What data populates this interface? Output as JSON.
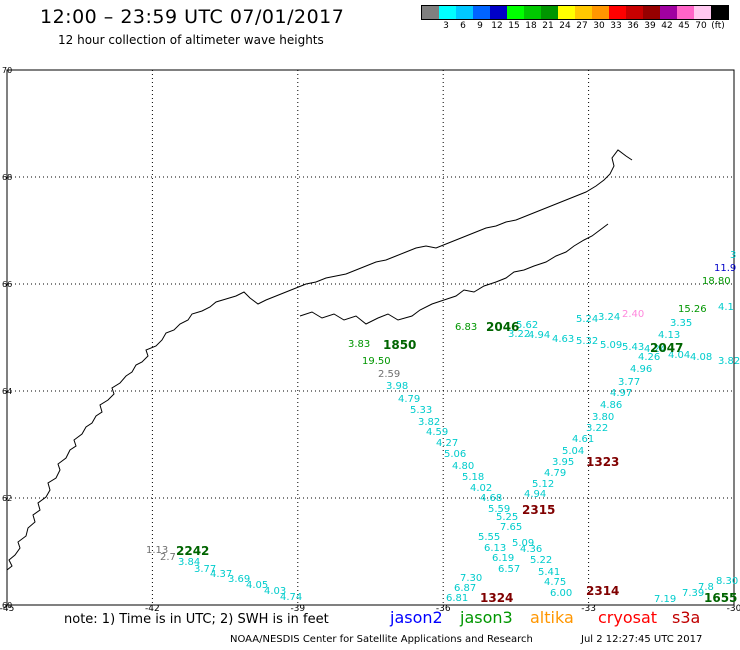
{
  "header": {
    "title": "12:00 – 23:59 UTC 07/01/2017",
    "subtitle": "12 hour collection of altimeter wave heights"
  },
  "legend": {
    "unit": "(ft)",
    "bins": [
      {
        "color": "#7f7f7f",
        "label": ""
      },
      {
        "color": "#00ffff",
        "label": "3"
      },
      {
        "color": "#00c8ff",
        "label": "6"
      },
      {
        "color": "#0064ff",
        "label": "9"
      },
      {
        "color": "#0000c8",
        "label": "12"
      },
      {
        "color": "#00ff00",
        "label": "15"
      },
      {
        "color": "#00c800",
        "label": "18"
      },
      {
        "color": "#009600",
        "label": "21"
      },
      {
        "color": "#ffff00",
        "label": "24"
      },
      {
        "color": "#ffc800",
        "label": "27"
      },
      {
        "color": "#ff9600",
        "label": "30"
      },
      {
        "color": "#ff0000",
        "label": "33"
      },
      {
        "color": "#c80000",
        "label": "36"
      },
      {
        "color": "#960000",
        "label": "39"
      },
      {
        "color": "#a000a0",
        "label": "42"
      },
      {
        "color": "#ff64c8",
        "label": "45"
      },
      {
        "color": "#ffc8f0",
        "label": "70"
      },
      {
        "color": "#000000",
        "label": "(ft)"
      }
    ]
  },
  "map": {
    "lat_labels": [
      "70",
      "68",
      "66",
      "64",
      "62",
      "60"
    ],
    "lat_values": [
      70,
      68,
      66,
      64,
      62,
      60
    ],
    "lon_labels": [
      "-45",
      "-42",
      "-39",
      "-36",
      "-33",
      "-30"
    ],
    "lon_values": [
      -45,
      -42,
      -39,
      -36,
      -33,
      -30
    ],
    "track_times": [
      {
        "text": "1850",
        "color": "#006400"
      },
      {
        "text": "2046",
        "color": "#006400"
      },
      {
        "text": "2047",
        "color": "#006400"
      },
      {
        "text": "2242",
        "color": "#006400"
      },
      {
        "text": "1655",
        "color": "#006400"
      },
      {
        "text": "1323",
        "color": "#800000"
      },
      {
        "text": "2315",
        "color": "#800000"
      },
      {
        "text": "1324",
        "color": "#800000"
      },
      {
        "text": "2314",
        "color": "#800000"
      }
    ],
    "values": [
      {
        "text": "3.83",
        "color": "#009600"
      },
      {
        "text": "19.50",
        "color": "#009600"
      },
      {
        "text": "2.59",
        "color": "#707070"
      },
      {
        "text": "3.98",
        "color": "#00cccc"
      },
      {
        "text": "4.79",
        "color": "#00cccc"
      },
      {
        "text": "5.33",
        "color": "#00cccc"
      },
      {
        "text": "3.82",
        "color": "#00cccc"
      },
      {
        "text": "4.59",
        "color": "#00cccc"
      },
      {
        "text": "4.27",
        "color": "#00cccc"
      },
      {
        "text": "5.06",
        "color": "#00cccc"
      },
      {
        "text": "4.80",
        "color": "#00cccc"
      },
      {
        "text": "5.18",
        "color": "#00cccc"
      },
      {
        "text": "4.02",
        "color": "#00cccc"
      },
      {
        "text": "4.68",
        "color": "#00cccc"
      },
      {
        "text": "5.59",
        "color": "#00cccc"
      },
      {
        "text": "5.25",
        "color": "#00cccc"
      },
      {
        "text": "7.65",
        "color": "#00cccc"
      },
      {
        "text": "5.55",
        "color": "#00cccc"
      },
      {
        "text": "6.13",
        "color": "#00cccc"
      },
      {
        "text": "6.19",
        "color": "#00cccc"
      },
      {
        "text": "6.57",
        "color": "#00cccc"
      },
      {
        "text": "7.30",
        "color": "#00cccc"
      },
      {
        "text": "6.87",
        "color": "#00cccc"
      },
      {
        "text": "6.81",
        "color": "#00cccc"
      },
      {
        "text": "6.83",
        "color": "#009600"
      },
      {
        "text": "5.62",
        "color": "#00cccc"
      },
      {
        "text": "3.22",
        "color": "#00cccc"
      },
      {
        "text": "4.94",
        "color": "#00cccc"
      },
      {
        "text": "4.63",
        "color": "#00cccc"
      },
      {
        "text": "5.32",
        "color": "#00cccc"
      },
      {
        "text": "5.24",
        "color": "#00cccc"
      },
      {
        "text": "3.24",
        "color": "#00cccc"
      },
      {
        "text": "5.09",
        "color": "#00cccc"
      },
      {
        "text": "5.43",
        "color": "#00cccc"
      },
      {
        "text": "4.24",
        "color": "#00cccc"
      },
      {
        "text": "4.26",
        "color": "#00cccc"
      },
      {
        "text": "4.96",
        "color": "#00cccc"
      },
      {
        "text": "3.77",
        "color": "#00cccc"
      },
      {
        "text": "4.97",
        "color": "#00cccc"
      },
      {
        "text": "4.86",
        "color": "#00cccc"
      },
      {
        "text": "3.80",
        "color": "#00cccc"
      },
      {
        "text": "3.22",
        "color": "#00cccc"
      },
      {
        "text": "4.61",
        "color": "#00cccc"
      },
      {
        "text": "5.04",
        "color": "#00cccc"
      },
      {
        "text": "3.95",
        "color": "#00cccc"
      },
      {
        "text": "4.79",
        "color": "#00cccc"
      },
      {
        "text": "5.12",
        "color": "#00cccc"
      },
      {
        "text": "4.94",
        "color": "#00cccc"
      },
      {
        "text": "5.09",
        "color": "#00cccc"
      },
      {
        "text": "4.36",
        "color": "#00cccc"
      },
      {
        "text": "5.22",
        "color": "#00cccc"
      },
      {
        "text": "5.41",
        "color": "#00cccc"
      },
      {
        "text": "4.75",
        "color": "#00cccc"
      },
      {
        "text": "6.00",
        "color": "#00cccc"
      },
      {
        "text": "3.35",
        "color": "#00cccc"
      },
      {
        "text": "4.13",
        "color": "#00cccc"
      },
      {
        "text": "4.04",
        "color": "#00cccc"
      },
      {
        "text": "4.08",
        "color": "#00cccc"
      },
      {
        "text": "3.82",
        "color": "#00cccc"
      },
      {
        "text": "2.40",
        "color": "#ff88dd"
      },
      {
        "text": "15.26",
        "color": "#009600"
      },
      {
        "text": "18.80",
        "color": "#009600"
      },
      {
        "text": "11.9",
        "color": "#0000c8"
      },
      {
        "text": "3",
        "color": "#00cccc"
      },
      {
        "text": "4.1",
        "color": "#00cccc"
      },
      {
        "text": "1.13",
        "color": "#707070"
      },
      {
        "text": "2.7",
        "color": "#707070"
      },
      {
        "text": "3.84",
        "color": "#00cccc"
      },
      {
        "text": "3.77",
        "color": "#00cccc"
      },
      {
        "text": "4.37",
        "color": "#00cccc"
      },
      {
        "text": "3.69",
        "color": "#00cccc"
      },
      {
        "text": "4.05",
        "color": "#00cccc"
      },
      {
        "text": "4.03",
        "color": "#00cccc"
      },
      {
        "text": "4.74",
        "color": "#00cccc"
      },
      {
        "text": "7.19",
        "color": "#00cccc"
      },
      {
        "text": "7.39",
        "color": "#00cccc"
      },
      {
        "text": "7.8",
        "color": "#00cccc"
      },
      {
        "text": "8.30",
        "color": "#00cccc"
      }
    ]
  },
  "footer": {
    "note": "note: 1) Time is in UTC; 2) SWH is in feet",
    "satellites": [
      {
        "name": "jason2",
        "color": "#0000ff"
      },
      {
        "name": "jason3",
        "color": "#009600"
      },
      {
        "name": "altika",
        "color": "#ff9600"
      },
      {
        "name": "cryosat",
        "color": "#ff0000"
      },
      {
        "name": "s3a",
        "color": "#c00000"
      }
    ],
    "credit": "NOAA/NESDIS Center for Satellite Applications and Research",
    "timestamp": "Jul  2 12:27:45 UTC 2017"
  }
}
